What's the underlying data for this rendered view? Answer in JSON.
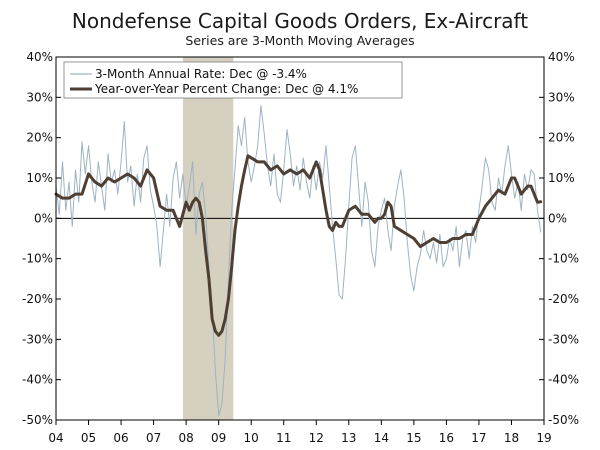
{
  "chart_data": {
    "type": "line",
    "title": "Nondefense Capital Goods Orders, Ex-Aircraft",
    "subtitle": "Series are 3-Month Moving Averages",
    "x_range": [
      2004.0,
      2019.0
    ],
    "ylim": [
      -50,
      40
    ],
    "y_ticks": [
      40,
      30,
      20,
      10,
      0,
      -10,
      -20,
      -30,
      -40,
      -50
    ],
    "y_tick_labels": [
      "40%",
      "30%",
      "20%",
      "10%",
      "0%",
      "-10%",
      "-20%",
      "-30%",
      "-40%",
      "-50%"
    ],
    "x_ticks": [
      2004,
      2005,
      2006,
      2007,
      2008,
      2009,
      2010,
      2011,
      2012,
      2013,
      2014,
      2015,
      2016,
      2017,
      2018,
      2019
    ],
    "x_tick_labels": [
      "04",
      "05",
      "06",
      "07",
      "08",
      "09",
      "10",
      "11",
      "12",
      "13",
      "14",
      "15",
      "16",
      "17",
      "18",
      "19"
    ],
    "recession": {
      "start": 2007.9,
      "end": 2009.45,
      "color": "#d6d0c0"
    },
    "legend": {
      "placement": "top-left"
    },
    "series": [
      {
        "name": "3-Month Annual Rate: Dec @ -3.4%",
        "color": "#9db3c3",
        "width": 1,
        "points": [
          [
            2004.0,
            8
          ],
          [
            2004.1,
            1
          ],
          [
            2004.2,
            14
          ],
          [
            2004.3,
            2
          ],
          [
            2004.4,
            9
          ],
          [
            2004.5,
            -2
          ],
          [
            2004.6,
            12
          ],
          [
            2004.7,
            4
          ],
          [
            2004.8,
            19
          ],
          [
            2004.9,
            11
          ],
          [
            2005.0,
            18
          ],
          [
            2005.1,
            9
          ],
          [
            2005.2,
            4
          ],
          [
            2005.3,
            14
          ],
          [
            2005.4,
            8
          ],
          [
            2005.5,
            2
          ],
          [
            2005.6,
            16
          ],
          [
            2005.7,
            9
          ],
          [
            2005.8,
            12
          ],
          [
            2005.9,
            6
          ],
          [
            2006.0,
            14
          ],
          [
            2006.1,
            24
          ],
          [
            2006.2,
            9
          ],
          [
            2006.3,
            13
          ],
          [
            2006.4,
            3
          ],
          [
            2006.5,
            11
          ],
          [
            2006.6,
            4
          ],
          [
            2006.7,
            15
          ],
          [
            2006.8,
            18
          ],
          [
            2006.9,
            7
          ],
          [
            2007.0,
            3
          ],
          [
            2007.1,
            -2
          ],
          [
            2007.2,
            -12
          ],
          [
            2007.3,
            -3
          ],
          [
            2007.4,
            6
          ],
          [
            2007.5,
            -2
          ],
          [
            2007.6,
            10
          ],
          [
            2007.7,
            14
          ],
          [
            2007.8,
            5
          ],
          [
            2007.9,
            11
          ],
          [
            2008.0,
            3
          ],
          [
            2008.1,
            8
          ],
          [
            2008.2,
            14
          ],
          [
            2008.3,
            -4
          ],
          [
            2008.4,
            6
          ],
          [
            2008.5,
            9
          ],
          [
            2008.6,
            1
          ],
          [
            2008.7,
            -12
          ],
          [
            2008.8,
            -22
          ],
          [
            2008.9,
            -38
          ],
          [
            2009.0,
            -49
          ],
          [
            2009.1,
            -46
          ],
          [
            2009.2,
            -35
          ],
          [
            2009.3,
            -15
          ],
          [
            2009.4,
            2
          ],
          [
            2009.5,
            12
          ],
          [
            2009.6,
            23
          ],
          [
            2009.7,
            18
          ],
          [
            2009.8,
            25
          ],
          [
            2009.9,
            14
          ],
          [
            2010.0,
            9
          ],
          [
            2010.1,
            13
          ],
          [
            2010.2,
            18
          ],
          [
            2010.3,
            28
          ],
          [
            2010.4,
            21
          ],
          [
            2010.5,
            13
          ],
          [
            2010.6,
            8
          ],
          [
            2010.7,
            16
          ],
          [
            2010.8,
            6
          ],
          [
            2010.9,
            4
          ],
          [
            2011.0,
            12
          ],
          [
            2011.1,
            22
          ],
          [
            2011.2,
            16
          ],
          [
            2011.3,
            8
          ],
          [
            2011.4,
            13
          ],
          [
            2011.5,
            7
          ],
          [
            2011.6,
            15
          ],
          [
            2011.7,
            9
          ],
          [
            2011.8,
            5
          ],
          [
            2011.9,
            13
          ],
          [
            2012.0,
            7
          ],
          [
            2012.1,
            14
          ],
          [
            2012.2,
            10
          ],
          [
            2012.3,
            18
          ],
          [
            2012.4,
            8
          ],
          [
            2012.5,
            -2
          ],
          [
            2012.6,
            -10
          ],
          [
            2012.7,
            -19
          ],
          [
            2012.8,
            -20
          ],
          [
            2012.9,
            -10
          ],
          [
            2013.0,
            3
          ],
          [
            2013.1,
            15
          ],
          [
            2013.2,
            18
          ],
          [
            2013.3,
            8
          ],
          [
            2013.4,
            -2
          ],
          [
            2013.5,
            9
          ],
          [
            2013.6,
            4
          ],
          [
            2013.7,
            -8
          ],
          [
            2013.8,
            -12
          ],
          [
            2013.9,
            -2
          ],
          [
            2014.0,
            2
          ],
          [
            2014.1,
            5
          ],
          [
            2014.2,
            -3
          ],
          [
            2014.3,
            -8
          ],
          [
            2014.4,
            3
          ],
          [
            2014.5,
            8
          ],
          [
            2014.6,
            12
          ],
          [
            2014.7,
            5
          ],
          [
            2014.8,
            -6
          ],
          [
            2014.9,
            -14
          ],
          [
            2015.0,
            -18
          ],
          [
            2015.1,
            -12
          ],
          [
            2015.2,
            -9
          ],
          [
            2015.3,
            -3
          ],
          [
            2015.4,
            -8
          ],
          [
            2015.5,
            -10
          ],
          [
            2015.6,
            -6
          ],
          [
            2015.7,
            -11
          ],
          [
            2015.8,
            -4
          ],
          [
            2015.9,
            -12
          ],
          [
            2016.0,
            -10
          ],
          [
            2016.1,
            -5
          ],
          [
            2016.2,
            -8
          ],
          [
            2016.3,
            -2
          ],
          [
            2016.4,
            -12
          ],
          [
            2016.5,
            -5
          ],
          [
            2016.6,
            -3
          ],
          [
            2016.7,
            -10
          ],
          [
            2016.8,
            -2
          ],
          [
            2016.9,
            -6
          ],
          [
            2017.0,
            2
          ],
          [
            2017.1,
            8
          ],
          [
            2017.2,
            15
          ],
          [
            2017.3,
            12
          ],
          [
            2017.4,
            4
          ],
          [
            2017.5,
            2
          ],
          [
            2017.6,
            10
          ],
          [
            2017.7,
            6
          ],
          [
            2017.8,
            13
          ],
          [
            2017.9,
            18
          ],
          [
            2018.0,
            11
          ],
          [
            2018.1,
            5
          ],
          [
            2018.2,
            9
          ],
          [
            2018.3,
            2
          ],
          [
            2018.4,
            11
          ],
          [
            2018.5,
            7
          ],
          [
            2018.6,
            12
          ],
          [
            2018.7,
            11
          ],
          [
            2018.8,
            2
          ],
          [
            2018.9,
            -3.4
          ]
        ]
      },
      {
        "name": "Year-over-Year Percent Change: Dec @ 4.1%",
        "color": "#4d3f33",
        "width": 3,
        "points": [
          [
            2004.0,
            6
          ],
          [
            2004.2,
            5
          ],
          [
            2004.4,
            5
          ],
          [
            2004.6,
            6
          ],
          [
            2004.8,
            6
          ],
          [
            2005.0,
            11
          ],
          [
            2005.2,
            9
          ],
          [
            2005.4,
            8
          ],
          [
            2005.6,
            10
          ],
          [
            2005.8,
            9
          ],
          [
            2006.0,
            10
          ],
          [
            2006.2,
            11
          ],
          [
            2006.4,
            10
          ],
          [
            2006.6,
            8
          ],
          [
            2006.8,
            12
          ],
          [
            2007.0,
            10
          ],
          [
            2007.2,
            3
          ],
          [
            2007.4,
            2
          ],
          [
            2007.6,
            2
          ],
          [
            2007.8,
            -2
          ],
          [
            2008.0,
            4
          ],
          [
            2008.1,
            2
          ],
          [
            2008.2,
            4
          ],
          [
            2008.3,
            5
          ],
          [
            2008.4,
            4
          ],
          [
            2008.5,
            0
          ],
          [
            2008.6,
            -8
          ],
          [
            2008.7,
            -15
          ],
          [
            2008.8,
            -25
          ],
          [
            2008.9,
            -28
          ],
          [
            2009.0,
            -29
          ],
          [
            2009.1,
            -28
          ],
          [
            2009.2,
            -25
          ],
          [
            2009.3,
            -20
          ],
          [
            2009.4,
            -12
          ],
          [
            2009.5,
            -3
          ],
          [
            2009.6,
            3
          ],
          [
            2009.7,
            8
          ],
          [
            2009.8,
            12
          ],
          [
            2009.9,
            15.5
          ],
          [
            2010.0,
            15
          ],
          [
            2010.2,
            14
          ],
          [
            2010.4,
            14
          ],
          [
            2010.6,
            12
          ],
          [
            2010.8,
            13
          ],
          [
            2011.0,
            11
          ],
          [
            2011.2,
            12
          ],
          [
            2011.4,
            11
          ],
          [
            2011.6,
            12
          ],
          [
            2011.8,
            10
          ],
          [
            2012.0,
            14
          ],
          [
            2012.1,
            12
          ],
          [
            2012.2,
            7
          ],
          [
            2012.3,
            2
          ],
          [
            2012.4,
            -2
          ],
          [
            2012.5,
            -3
          ],
          [
            2012.6,
            -1
          ],
          [
            2012.7,
            -2
          ],
          [
            2012.8,
            -2
          ],
          [
            2012.9,
            0
          ],
          [
            2013.0,
            2
          ],
          [
            2013.2,
            3
          ],
          [
            2013.4,
            1
          ],
          [
            2013.6,
            1
          ],
          [
            2013.8,
            -1
          ],
          [
            2013.9,
            0
          ],
          [
            2014.0,
            0
          ],
          [
            2014.1,
            1
          ],
          [
            2014.2,
            4
          ],
          [
            2014.3,
            3
          ],
          [
            2014.4,
            -2
          ],
          [
            2014.6,
            -3
          ],
          [
            2014.8,
            -4
          ],
          [
            2015.0,
            -5
          ],
          [
            2015.2,
            -7
          ],
          [
            2015.4,
            -6
          ],
          [
            2015.6,
            -5
          ],
          [
            2015.8,
            -6
          ],
          [
            2016.0,
            -6
          ],
          [
            2016.2,
            -5
          ],
          [
            2016.4,
            -5
          ],
          [
            2016.6,
            -4
          ],
          [
            2016.8,
            -4
          ],
          [
            2017.0,
            0
          ],
          [
            2017.2,
            3
          ],
          [
            2017.4,
            5
          ],
          [
            2017.6,
            7
          ],
          [
            2017.8,
            6
          ],
          [
            2018.0,
            10
          ],
          [
            2018.1,
            10
          ],
          [
            2018.2,
            8
          ],
          [
            2018.3,
            6
          ],
          [
            2018.4,
            7
          ],
          [
            2018.5,
            8
          ],
          [
            2018.6,
            8
          ],
          [
            2018.7,
            6
          ],
          [
            2018.8,
            4
          ],
          [
            2018.9,
            4.1
          ]
        ]
      }
    ]
  }
}
